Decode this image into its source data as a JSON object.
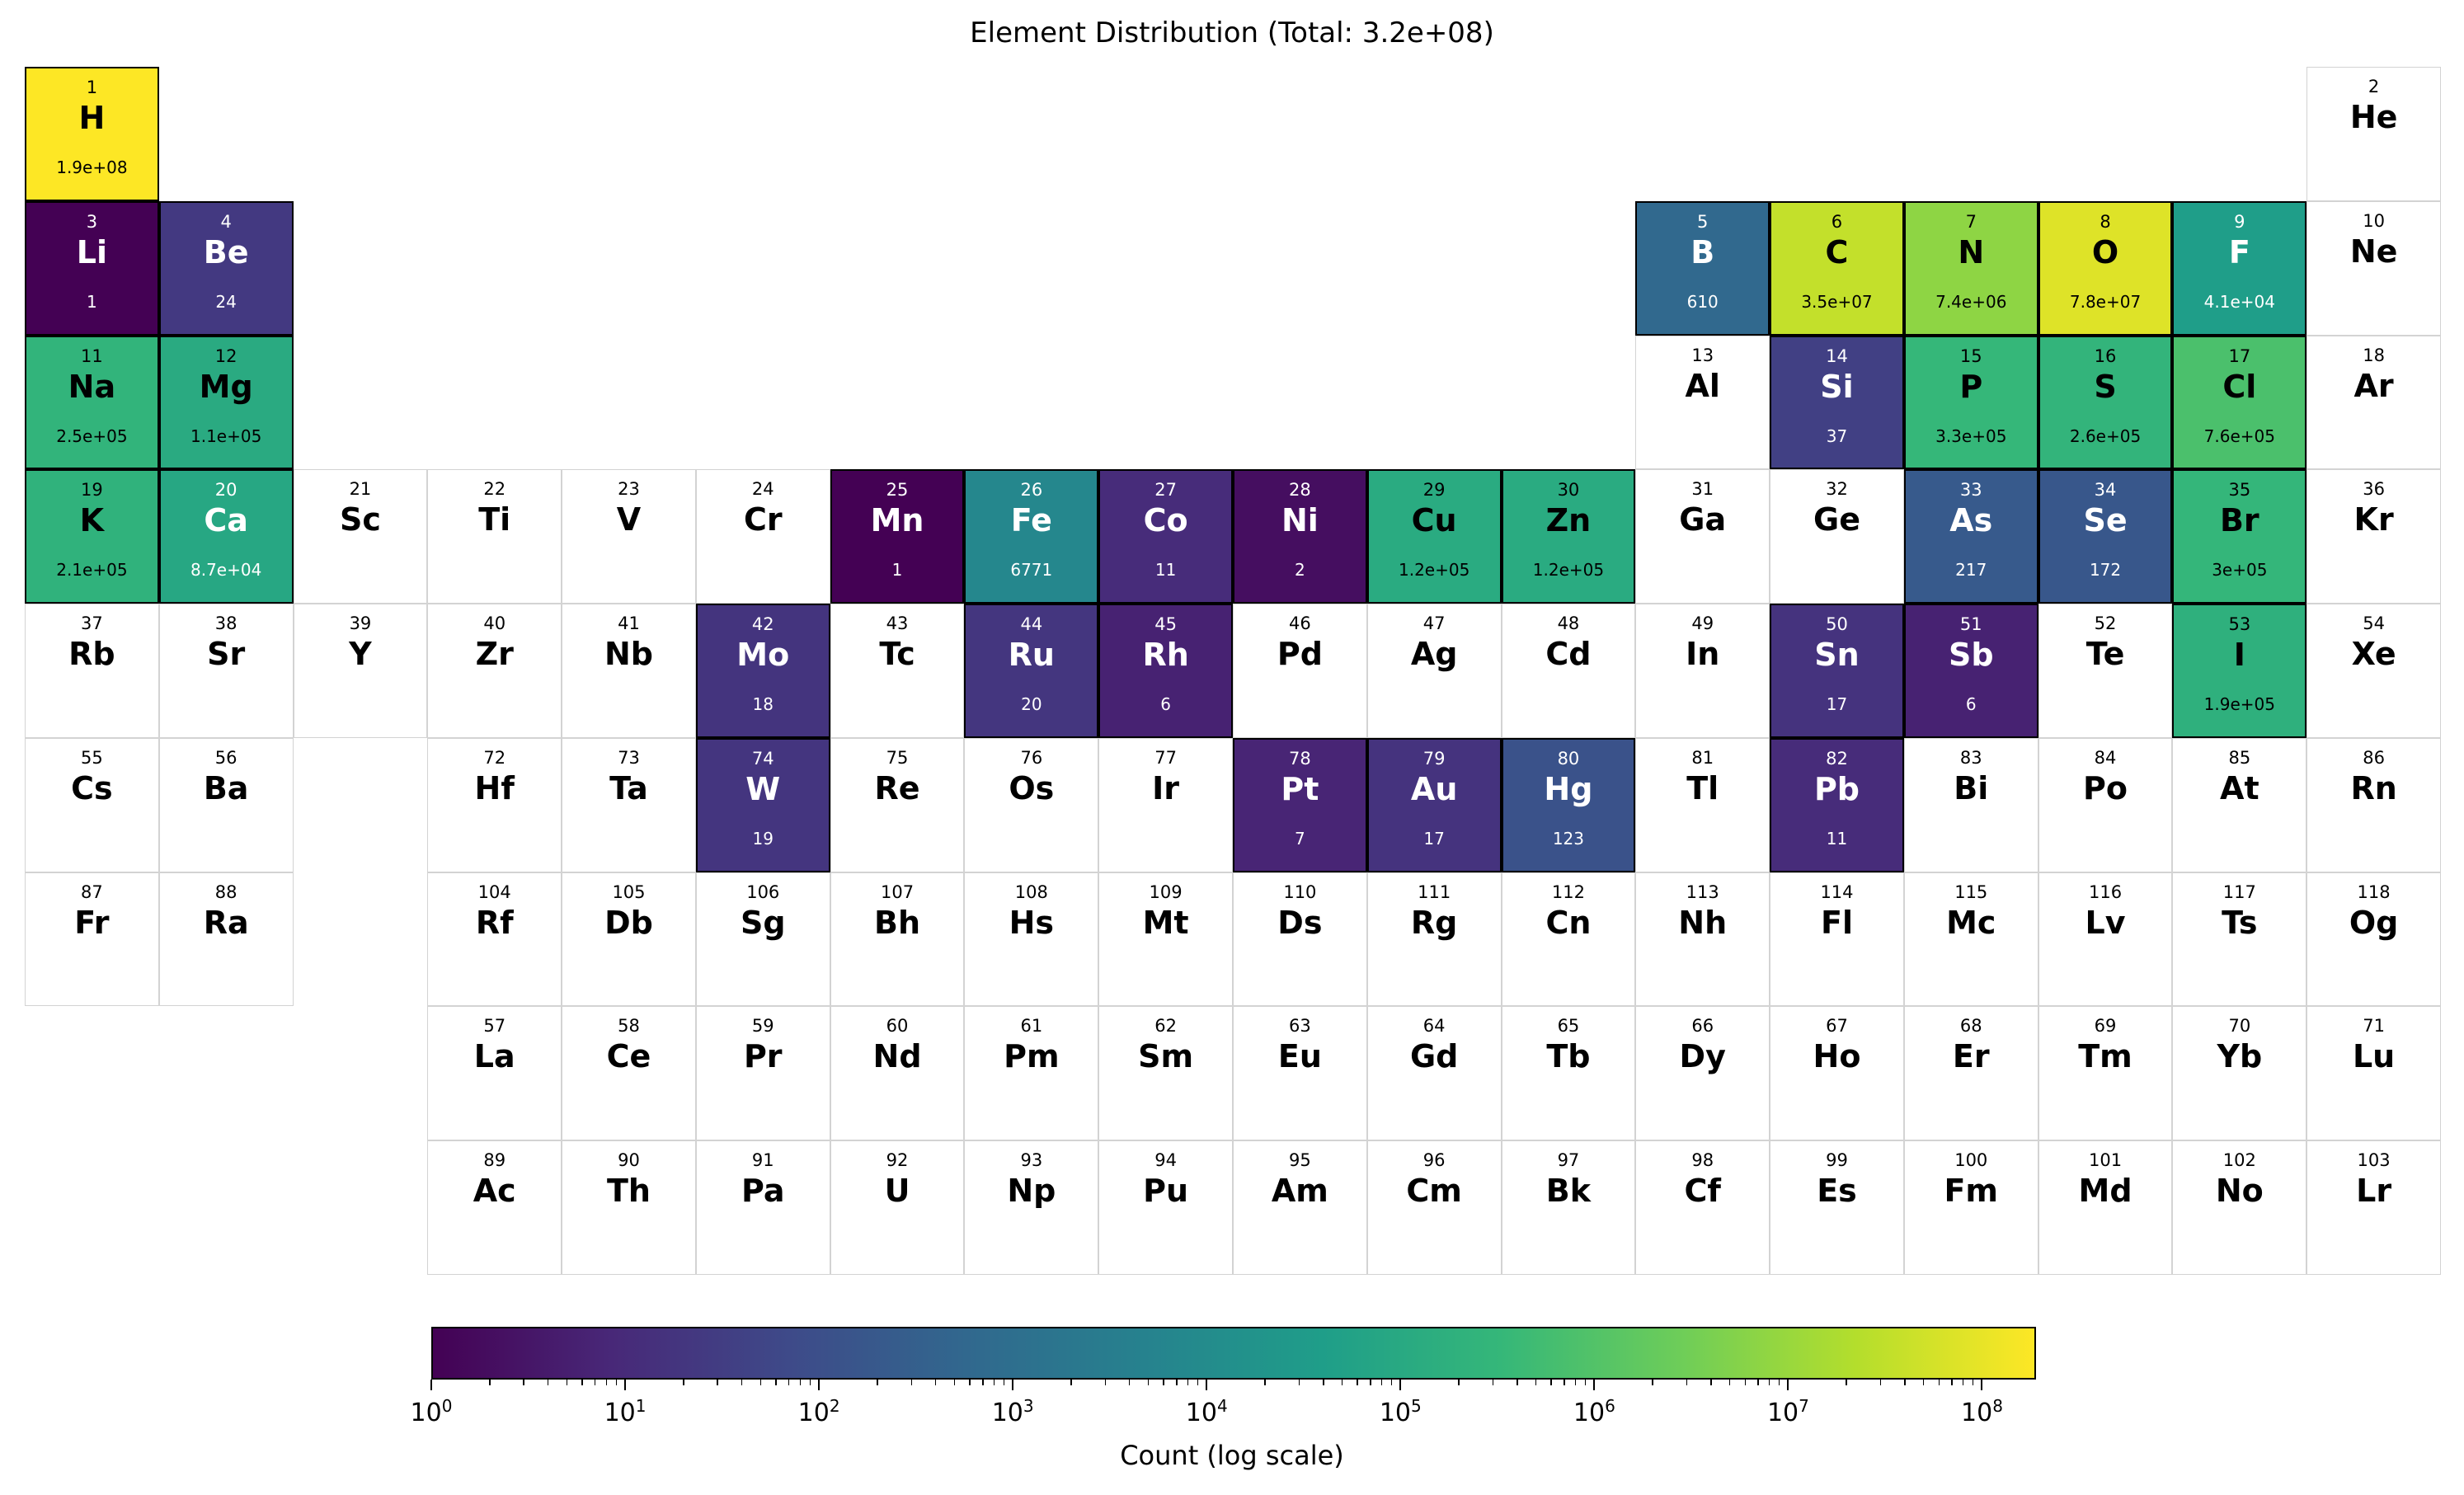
{
  "title": "Element Distribution (Total: 3.2e+08)",
  "colorbar": {
    "label": "Count (log scale)",
    "scale": "log",
    "range": [
      1,
      190000000
    ],
    "colormap": "viridis",
    "tick_labels": [
      {
        "base": "10",
        "exp": "0"
      },
      {
        "base": "10",
        "exp": "1"
      },
      {
        "base": "10",
        "exp": "2"
      },
      {
        "base": "10",
        "exp": "3"
      },
      {
        "base": "10",
        "exp": "4"
      },
      {
        "base": "10",
        "exp": "5"
      },
      {
        "base": "10",
        "exp": "6"
      },
      {
        "base": "10",
        "exp": "7"
      },
      {
        "base": "10",
        "exp": "8"
      }
    ]
  },
  "chart_data": {
    "type": "heatmap",
    "title": "Element Distribution (Total: 3.2e+08)",
    "color_scale": "log",
    "colorbar_label": "Count (log scale)",
    "colorbar_range": [
      1,
      190000000
    ],
    "elements": [
      {
        "z": 1,
        "sym": "H",
        "row": 1,
        "col": 1,
        "count": 190000000,
        "label": "1.9e+08"
      },
      {
        "z": 2,
        "sym": "He",
        "row": 1,
        "col": 18
      },
      {
        "z": 3,
        "sym": "Li",
        "row": 2,
        "col": 1,
        "count": 1,
        "label": "1"
      },
      {
        "z": 4,
        "sym": "Be",
        "row": 2,
        "col": 2,
        "count": 24,
        "label": "24"
      },
      {
        "z": 5,
        "sym": "B",
        "row": 2,
        "col": 13,
        "count": 610,
        "label": "610"
      },
      {
        "z": 6,
        "sym": "C",
        "row": 2,
        "col": 14,
        "count": 35000000,
        "label": "3.5e+07"
      },
      {
        "z": 7,
        "sym": "N",
        "row": 2,
        "col": 15,
        "count": 7400000,
        "label": "7.4e+06"
      },
      {
        "z": 8,
        "sym": "O",
        "row": 2,
        "col": 16,
        "count": 78000000,
        "label": "7.8e+07"
      },
      {
        "z": 9,
        "sym": "F",
        "row": 2,
        "col": 17,
        "count": 41000,
        "label": "4.1e+04"
      },
      {
        "z": 10,
        "sym": "Ne",
        "row": 2,
        "col": 18
      },
      {
        "z": 11,
        "sym": "Na",
        "row": 3,
        "col": 1,
        "count": 250000,
        "label": "2.5e+05"
      },
      {
        "z": 12,
        "sym": "Mg",
        "row": 3,
        "col": 2,
        "count": 110000,
        "label": "1.1e+05"
      },
      {
        "z": 13,
        "sym": "Al",
        "row": 3,
        "col": 13
      },
      {
        "z": 14,
        "sym": "Si",
        "row": 3,
        "col": 14,
        "count": 37,
        "label": "37"
      },
      {
        "z": 15,
        "sym": "P",
        "row": 3,
        "col": 15,
        "count": 330000,
        "label": "3.3e+05"
      },
      {
        "z": 16,
        "sym": "S",
        "row": 3,
        "col": 16,
        "count": 260000,
        "label": "2.6e+05"
      },
      {
        "z": 17,
        "sym": "Cl",
        "row": 3,
        "col": 17,
        "count": 760000,
        "label": "7.6e+05"
      },
      {
        "z": 18,
        "sym": "Ar",
        "row": 3,
        "col": 18
      },
      {
        "z": 19,
        "sym": "K",
        "row": 4,
        "col": 1,
        "count": 210000,
        "label": "2.1e+05"
      },
      {
        "z": 20,
        "sym": "Ca",
        "row": 4,
        "col": 2,
        "count": 87000,
        "label": "8.7e+04"
      },
      {
        "z": 21,
        "sym": "Sc",
        "row": 4,
        "col": 3
      },
      {
        "z": 22,
        "sym": "Ti",
        "row": 4,
        "col": 4
      },
      {
        "z": 23,
        "sym": "V",
        "row": 4,
        "col": 5
      },
      {
        "z": 24,
        "sym": "Cr",
        "row": 4,
        "col": 6
      },
      {
        "z": 25,
        "sym": "Mn",
        "row": 4,
        "col": 7,
        "count": 1,
        "label": "1"
      },
      {
        "z": 26,
        "sym": "Fe",
        "row": 4,
        "col": 8,
        "count": 6771,
        "label": "6771"
      },
      {
        "z": 27,
        "sym": "Co",
        "row": 4,
        "col": 9,
        "count": 11,
        "label": "11"
      },
      {
        "z": 28,
        "sym": "Ni",
        "row": 4,
        "col": 10,
        "count": 2,
        "label": "2"
      },
      {
        "z": 29,
        "sym": "Cu",
        "row": 4,
        "col": 11,
        "count": 120000,
        "label": "1.2e+05"
      },
      {
        "z": 30,
        "sym": "Zn",
        "row": 4,
        "col": 12,
        "count": 120000,
        "label": "1.2e+05"
      },
      {
        "z": 31,
        "sym": "Ga",
        "row": 4,
        "col": 13
      },
      {
        "z": 32,
        "sym": "Ge",
        "row": 4,
        "col": 14
      },
      {
        "z": 33,
        "sym": "As",
        "row": 4,
        "col": 15,
        "count": 217,
        "label": "217"
      },
      {
        "z": 34,
        "sym": "Se",
        "row": 4,
        "col": 16,
        "count": 172,
        "label": "172"
      },
      {
        "z": 35,
        "sym": "Br",
        "row": 4,
        "col": 17,
        "count": 300000,
        "label": "3e+05"
      },
      {
        "z": 36,
        "sym": "Kr",
        "row": 4,
        "col": 18
      },
      {
        "z": 37,
        "sym": "Rb",
        "row": 5,
        "col": 1
      },
      {
        "z": 38,
        "sym": "Sr",
        "row": 5,
        "col": 2
      },
      {
        "z": 39,
        "sym": "Y",
        "row": 5,
        "col": 3
      },
      {
        "z": 40,
        "sym": "Zr",
        "row": 5,
        "col": 4
      },
      {
        "z": 41,
        "sym": "Nb",
        "row": 5,
        "col": 5
      },
      {
        "z": 42,
        "sym": "Mo",
        "row": 5,
        "col": 6,
        "count": 18,
        "label": "18"
      },
      {
        "z": 43,
        "sym": "Tc",
        "row": 5,
        "col": 7
      },
      {
        "z": 44,
        "sym": "Ru",
        "row": 5,
        "col": 8,
        "count": 20,
        "label": "20"
      },
      {
        "z": 45,
        "sym": "Rh",
        "row": 5,
        "col": 9,
        "count": 6,
        "label": "6"
      },
      {
        "z": 46,
        "sym": "Pd",
        "row": 5,
        "col": 10
      },
      {
        "z": 47,
        "sym": "Ag",
        "row": 5,
        "col": 11
      },
      {
        "z": 48,
        "sym": "Cd",
        "row": 5,
        "col": 12
      },
      {
        "z": 49,
        "sym": "In",
        "row": 5,
        "col": 13
      },
      {
        "z": 50,
        "sym": "Sn",
        "row": 5,
        "col": 14,
        "count": 17,
        "label": "17"
      },
      {
        "z": 51,
        "sym": "Sb",
        "row": 5,
        "col": 15,
        "count": 6,
        "label": "6"
      },
      {
        "z": 52,
        "sym": "Te",
        "row": 5,
        "col": 16
      },
      {
        "z": 53,
        "sym": "I",
        "row": 5,
        "col": 17,
        "count": 190000,
        "label": "1.9e+05"
      },
      {
        "z": 54,
        "sym": "Xe",
        "row": 5,
        "col": 18
      },
      {
        "z": 55,
        "sym": "Cs",
        "row": 6,
        "col": 1
      },
      {
        "z": 56,
        "sym": "Ba",
        "row": 6,
        "col": 2
      },
      {
        "z": 72,
        "sym": "Hf",
        "row": 6,
        "col": 4
      },
      {
        "z": 73,
        "sym": "Ta",
        "row": 6,
        "col": 5
      },
      {
        "z": 74,
        "sym": "W",
        "row": 6,
        "col": 6,
        "count": 19,
        "label": "19"
      },
      {
        "z": 75,
        "sym": "Re",
        "row": 6,
        "col": 7
      },
      {
        "z": 76,
        "sym": "Os",
        "row": 6,
        "col": 8
      },
      {
        "z": 77,
        "sym": "Ir",
        "row": 6,
        "col": 9
      },
      {
        "z": 78,
        "sym": "Pt",
        "row": 6,
        "col": 10,
        "count": 7,
        "label": "7"
      },
      {
        "z": 79,
        "sym": "Au",
        "row": 6,
        "col": 11,
        "count": 17,
        "label": "17"
      },
      {
        "z": 80,
        "sym": "Hg",
        "row": 6,
        "col": 12,
        "count": 123,
        "label": "123"
      },
      {
        "z": 81,
        "sym": "Tl",
        "row": 6,
        "col": 13
      },
      {
        "z": 82,
        "sym": "Pb",
        "row": 6,
        "col": 14,
        "count": 11,
        "label": "11"
      },
      {
        "z": 83,
        "sym": "Bi",
        "row": 6,
        "col": 15
      },
      {
        "z": 84,
        "sym": "Po",
        "row": 6,
        "col": 16
      },
      {
        "z": 85,
        "sym": "At",
        "row": 6,
        "col": 17
      },
      {
        "z": 86,
        "sym": "Rn",
        "row": 6,
        "col": 18
      },
      {
        "z": 87,
        "sym": "Fr",
        "row": 7,
        "col": 1
      },
      {
        "z": 88,
        "sym": "Ra",
        "row": 7,
        "col": 2
      },
      {
        "z": 104,
        "sym": "Rf",
        "row": 7,
        "col": 4
      },
      {
        "z": 105,
        "sym": "Db",
        "row": 7,
        "col": 5
      },
      {
        "z": 106,
        "sym": "Sg",
        "row": 7,
        "col": 6
      },
      {
        "z": 107,
        "sym": "Bh",
        "row": 7,
        "col": 7
      },
      {
        "z": 108,
        "sym": "Hs",
        "row": 7,
        "col": 8
      },
      {
        "z": 109,
        "sym": "Mt",
        "row": 7,
        "col": 9
      },
      {
        "z": 110,
        "sym": "Ds",
        "row": 7,
        "col": 10
      },
      {
        "z": 111,
        "sym": "Rg",
        "row": 7,
        "col": 11
      },
      {
        "z": 112,
        "sym": "Cn",
        "row": 7,
        "col": 12
      },
      {
        "z": 113,
        "sym": "Nh",
        "row": 7,
        "col": 13
      },
      {
        "z": 114,
        "sym": "Fl",
        "row": 7,
        "col": 14
      },
      {
        "z": 115,
        "sym": "Mc",
        "row": 7,
        "col": 15
      },
      {
        "z": 116,
        "sym": "Lv",
        "row": 7,
        "col": 16
      },
      {
        "z": 117,
        "sym": "Ts",
        "row": 7,
        "col": 17
      },
      {
        "z": 118,
        "sym": "Og",
        "row": 7,
        "col": 18
      },
      {
        "z": 57,
        "sym": "La",
        "row": 8,
        "col": 4
      },
      {
        "z": 58,
        "sym": "Ce",
        "row": 8,
        "col": 5
      },
      {
        "z": 59,
        "sym": "Pr",
        "row": 8,
        "col": 6
      },
      {
        "z": 60,
        "sym": "Nd",
        "row": 8,
        "col": 7
      },
      {
        "z": 61,
        "sym": "Pm",
        "row": 8,
        "col": 8
      },
      {
        "z": 62,
        "sym": "Sm",
        "row": 8,
        "col": 9
      },
      {
        "z": 63,
        "sym": "Eu",
        "row": 8,
        "col": 10
      },
      {
        "z": 64,
        "sym": "Gd",
        "row": 8,
        "col": 11
      },
      {
        "z": 65,
        "sym": "Tb",
        "row": 8,
        "col": 12
      },
      {
        "z": 66,
        "sym": "Dy",
        "row": 8,
        "col": 13
      },
      {
        "z": 67,
        "sym": "Ho",
        "row": 8,
        "col": 14
      },
      {
        "z": 68,
        "sym": "Er",
        "row": 8,
        "col": 15
      },
      {
        "z": 69,
        "sym": "Tm",
        "row": 8,
        "col": 16
      },
      {
        "z": 70,
        "sym": "Yb",
        "row": 8,
        "col": 17
      },
      {
        "z": 71,
        "sym": "Lu",
        "row": 8,
        "col": 18
      },
      {
        "z": 89,
        "sym": "Ac",
        "row": 9,
        "col": 4
      },
      {
        "z": 90,
        "sym": "Th",
        "row": 9,
        "col": 5
      },
      {
        "z": 91,
        "sym": "Pa",
        "row": 9,
        "col": 6
      },
      {
        "z": 92,
        "sym": "U",
        "row": 9,
        "col": 7
      },
      {
        "z": 93,
        "sym": "Np",
        "row": 9,
        "col": 8
      },
      {
        "z": 94,
        "sym": "Pu",
        "row": 9,
        "col": 9
      },
      {
        "z": 95,
        "sym": "Am",
        "row": 9,
        "col": 10
      },
      {
        "z": 96,
        "sym": "Cm",
        "row": 9,
        "col": 11
      },
      {
        "z": 97,
        "sym": "Bk",
        "row": 9,
        "col": 12
      },
      {
        "z": 98,
        "sym": "Cf",
        "row": 9,
        "col": 13
      },
      {
        "z": 99,
        "sym": "Es",
        "row": 9,
        "col": 14
      },
      {
        "z": 100,
        "sym": "Fm",
        "row": 9,
        "col": 15
      },
      {
        "z": 101,
        "sym": "Md",
        "row": 9,
        "col": 16
      },
      {
        "z": 102,
        "sym": "No",
        "row": 9,
        "col": 17
      },
      {
        "z": 103,
        "sym": "Lr",
        "row": 9,
        "col": 18
      }
    ]
  }
}
